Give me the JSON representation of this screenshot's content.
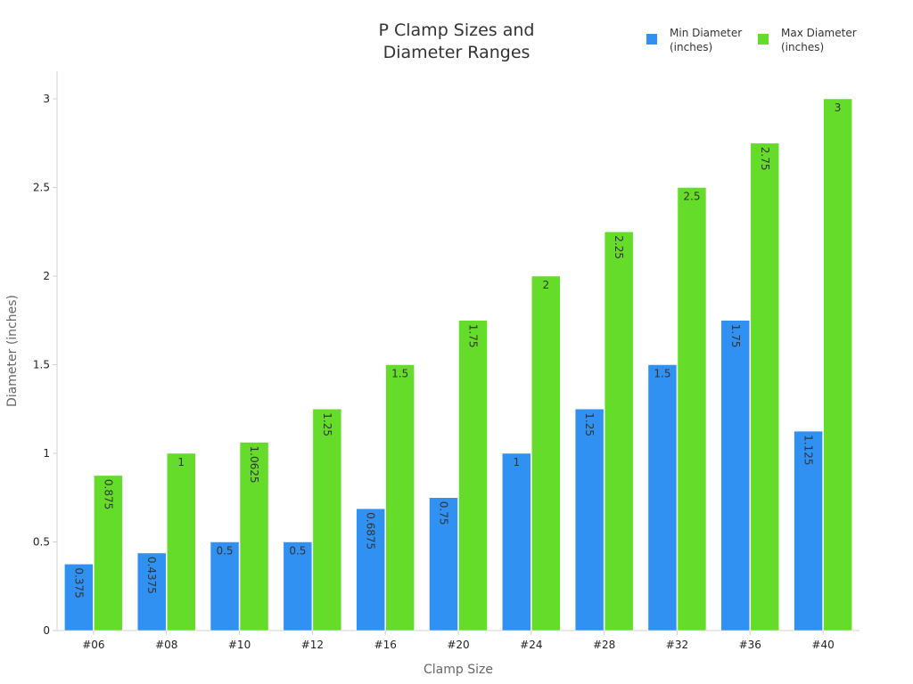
{
  "chart_data": {
    "type": "bar",
    "title": "P Clamp Sizes and Diameter Ranges",
    "title_lines": [
      "P Clamp Sizes and",
      "Diameter Ranges"
    ],
    "xlabel": "Clamp Size",
    "ylabel": "Diameter (inches)",
    "ylim": [
      0,
      3.15
    ],
    "yticks": [
      0,
      0.5,
      1,
      1.5,
      2,
      2.5,
      3
    ],
    "ytick_labels": [
      "0",
      "0.5",
      "1",
      "1.5",
      "2",
      "2.5",
      "3"
    ],
    "categories": [
      "#06",
      "#08",
      "#10",
      "#12",
      "#16",
      "#20",
      "#24",
      "#28",
      "#32",
      "#36",
      "#40"
    ],
    "series": [
      {
        "name": "Min Diameter (inches)",
        "legend_lines": [
          "Min Diameter",
          "(inches)"
        ],
        "color": "#3091f2",
        "values": [
          0.375,
          0.4375,
          0.5,
          0.5,
          0.6875,
          0.75,
          1,
          1.25,
          1.5,
          1.75,
          1.125
        ],
        "labels": [
          "0.375",
          "0.4375",
          "0.5",
          "0.5",
          "0.6875",
          "0.75",
          "1",
          "1.25",
          "1.5",
          "1.75",
          "1.125"
        ]
      },
      {
        "name": "Max Diameter (inches)",
        "legend_lines": [
          "Max Diameter",
          "(inches)"
        ],
        "color": "#66dc2a",
        "values": [
          0.875,
          1,
          1.0625,
          1.25,
          1.5,
          1.75,
          2,
          2.25,
          2.5,
          2.75,
          3
        ],
        "labels": [
          "0.875",
          "1",
          "1.0625",
          "1.25",
          "1.5",
          "1.75",
          "2",
          "2.25",
          "2.5",
          "2.75",
          "3"
        ]
      }
    ],
    "legend": "top-right",
    "grid": false
  }
}
